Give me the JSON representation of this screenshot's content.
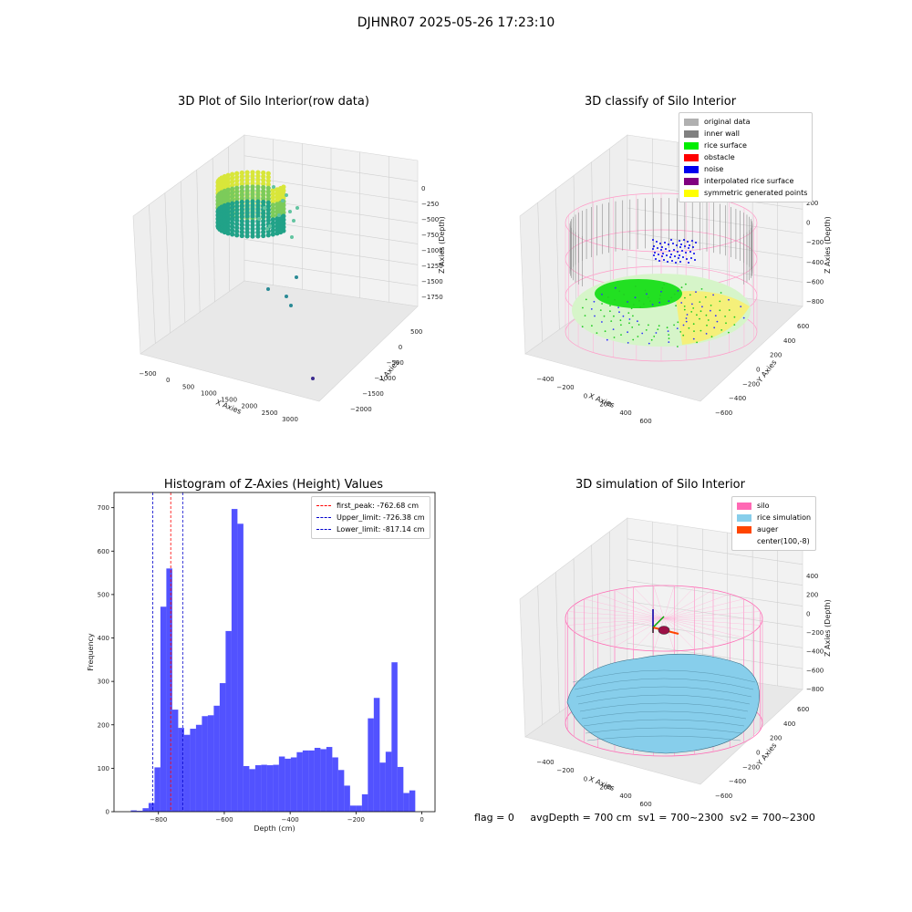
{
  "suptitle": "DJHNR07 2025-05-26 17:23:10",
  "status": {
    "flag": "flag = 0",
    "avg_depth": "avgDepth = 700 cm",
    "sv1": "sv1 = 700~2300",
    "sv2": "sv2 = 700~2300"
  },
  "panel1": {
    "title": "3D Plot of Silo Interior(row data)",
    "xlabel": "X Axies",
    "ylabel": "Y Axies",
    "zlabel": "Z Axies (Depth)",
    "xticks": [
      "−500",
      "0",
      "500",
      "1000",
      "1500",
      "2000",
      "2500",
      "3000"
    ],
    "yticks": [
      "500",
      "0",
      "−500",
      "−1000",
      "−1500",
      "−2000"
    ],
    "zticks": [
      "0",
      "−250",
      "−500",
      "−750",
      "−1000",
      "−1250",
      "−1500",
      "−1750"
    ]
  },
  "panel2": {
    "title": "3D classify of Silo Interior",
    "xlabel": "X Axies",
    "ylabel": "Y Axies",
    "zlabel": "Z Axies (Depth)",
    "xticks": [
      "−400",
      "−200",
      "0",
      "200",
      "400",
      "600"
    ],
    "yticks": [
      "600",
      "400",
      "200",
      "0",
      "−200",
      "−400",
      "−600"
    ],
    "zticks": [
      "200",
      "0",
      "−200",
      "−400",
      "−600",
      "−800"
    ],
    "legend": [
      {
        "label": "original data",
        "color": "#b0b0b0"
      },
      {
        "label": "inner wall",
        "color": "#808080"
      },
      {
        "label": "rice surface",
        "color": "#00ee00"
      },
      {
        "label": "obstacle",
        "color": "#ff0000"
      },
      {
        "label": "noise",
        "color": "#0000ee"
      },
      {
        "label": "interpolated rice surface",
        "color": "#800080"
      },
      {
        "label": "symmetric generated points",
        "color": "#ffff00"
      }
    ]
  },
  "panel4": {
    "title": "3D simulation of Silo Interior",
    "xlabel": "X Axies",
    "ylabel": "Y Axies",
    "zlabel": "Z Axies (Depth)",
    "xticks": [
      "−400",
      "−200",
      "0",
      "200",
      "400",
      "600"
    ],
    "yticks": [
      "600",
      "400",
      "200",
      "0",
      "−200",
      "−400",
      "−600"
    ],
    "zticks": [
      "400",
      "200",
      "0",
      "−200",
      "−400",
      "−600",
      "−800"
    ],
    "legend": [
      {
        "label": "silo",
        "color": "#ff69b4"
      },
      {
        "label": "rice simulation",
        "color": "#87ceeb"
      },
      {
        "label": "auger",
        "color": "#ff4500"
      },
      {
        "label": "center(100,-8)",
        "color": "#ffffff"
      }
    ]
  },
  "chart_data": {
    "type": "bar",
    "title": "Histogram of Z-Axies (Height) Values",
    "xlabel": "Depth (cm)",
    "ylabel": "Frequency",
    "xlim": [
      -935,
      40
    ],
    "ylim": [
      0,
      735
    ],
    "bar_color": "#0000ff",
    "x_ticks": [
      -800,
      -600,
      -400,
      -200,
      0
    ],
    "y_ticks": [
      0,
      100,
      200,
      300,
      400,
      500,
      600,
      700
    ],
    "bin_width": 18,
    "bins_left": [
      -884,
      -866,
      -848,
      -830,
      -812,
      -794,
      -776,
      -758,
      -740,
      -722,
      -704,
      -686,
      -668,
      -650,
      -632,
      -614,
      -596,
      -578,
      -560,
      -542,
      -524,
      -506,
      -488,
      -470,
      -452,
      -434,
      -416,
      -398,
      -380,
      -362,
      -344,
      -326,
      -308,
      -290,
      -272,
      -254,
      -236,
      -218,
      -200,
      -182,
      -164,
      -146,
      -128,
      -110,
      -92,
      -74,
      -56,
      -38,
      -20
    ],
    "values": [
      3,
      2,
      8,
      20,
      102,
      472,
      560,
      235,
      193,
      177,
      191,
      200,
      220,
      222,
      244,
      296,
      416,
      697,
      663,
      105,
      98,
      107,
      108,
      107,
      108,
      127,
      122,
      125,
      137,
      141,
      141,
      147,
      144,
      149,
      125,
      96,
      60,
      14,
      14,
      40,
      215,
      262,
      113,
      138,
      344,
      103,
      43,
      49,
      0
    ],
    "series": [
      {
        "name": "first_peak: -762.68 cm",
        "x": -762.68,
        "color": "#ff0000"
      },
      {
        "name": "Upper_limit: -726.38 cm",
        "x": -726.38,
        "color": "#0000cc"
      },
      {
        "name": "Lower_limit: -817.14 cm",
        "x": -817.14,
        "color": "#0000cc"
      }
    ]
  }
}
